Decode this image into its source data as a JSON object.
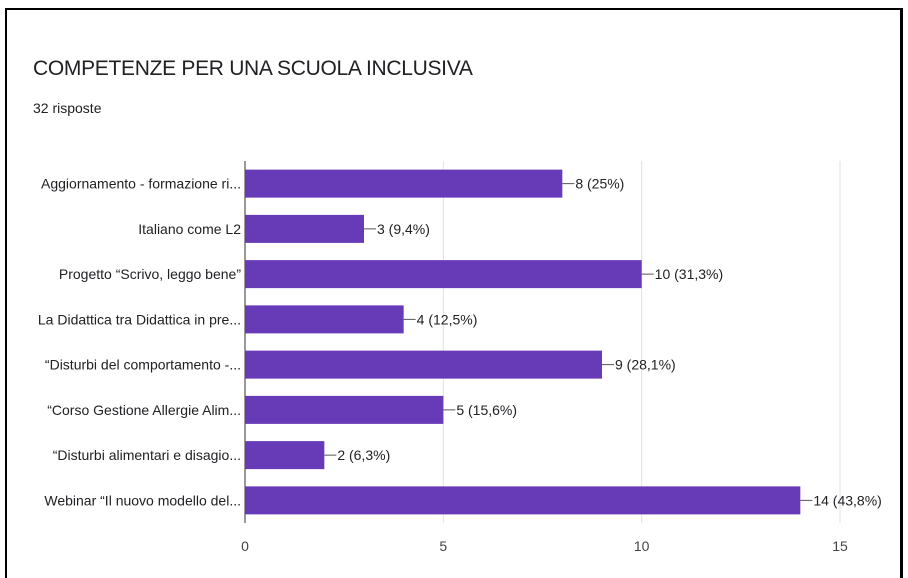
{
  "chart_data": {
    "type": "bar",
    "orientation": "horizontal",
    "title": "COMPETENZE PER UNA SCUOLA INCLUSIVA",
    "subtitle": "32 risposte",
    "categories": [
      "Aggiornamento - formazione ri...",
      "Italiano come L2",
      "Progetto “Scrivo, leggo bene”",
      "La Didattica tra Didattica in pre...",
      "“Disturbi del comportamento -...",
      "“Corso Gestione Allergie Alim...",
      "“Disturbi alimentari e disagio...",
      "Webinar “Il nuovo modello del..."
    ],
    "values": [
      8,
      3,
      10,
      4,
      9,
      5,
      2,
      14
    ],
    "data_labels": [
      "8 (25%)",
      "3 (9,4%)",
      "10 (31,3%)",
      "4 (12,5%)",
      "9 (28,1%)",
      "5 (15,6%)",
      "2 (6,3%)",
      "14 (43,8%)"
    ],
    "xlim": [
      0,
      15
    ],
    "xticks": [
      0,
      5,
      10,
      15
    ],
    "grid": true,
    "bar_color": "#673ab7"
  }
}
